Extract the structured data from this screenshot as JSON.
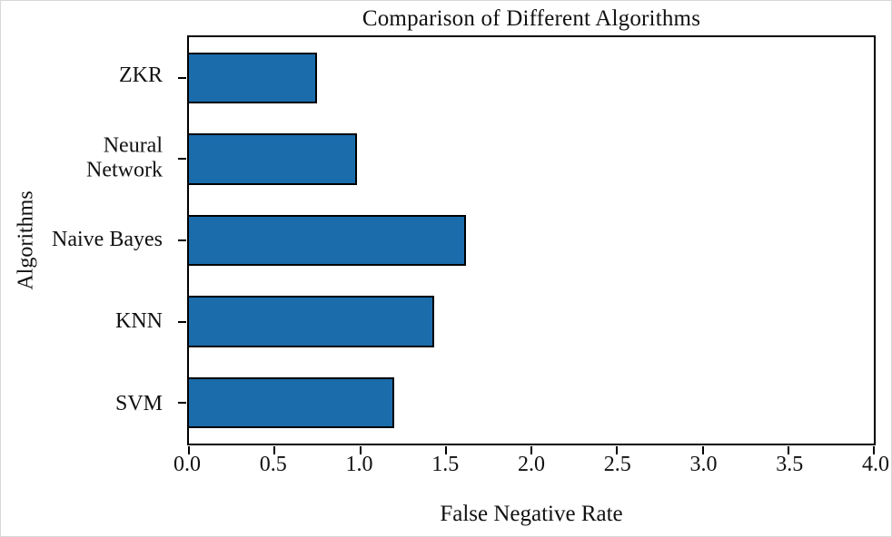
{
  "chart_data": {
    "type": "bar",
    "orientation": "horizontal",
    "title": "Comparison of Different Algorithms",
    "xlabel": "False Negative Rate",
    "ylabel": "Algorithms",
    "categories": [
      "ZKR",
      "Neural Network",
      "Naive Bayes",
      "KNN",
      "SVM"
    ],
    "ytick_labels": [
      "ZKR",
      "Neural\nNetwork",
      "Naive Bayes",
      "KNN",
      "SVM"
    ],
    "values": [
      0.75,
      0.98,
      1.62,
      1.43,
      1.2
    ],
    "xlim": [
      0,
      4
    ],
    "xticks": [
      0.0,
      0.5,
      1.0,
      1.5,
      2.0,
      2.5,
      3.0,
      3.5,
      4.0
    ],
    "xtick_decimals": 1,
    "grid": false,
    "legend": "none"
  },
  "colors": {
    "bar_fill": "#1b6cab",
    "bar_edge": "#000000",
    "axis": "#000000",
    "background": "#ffffff"
  }
}
